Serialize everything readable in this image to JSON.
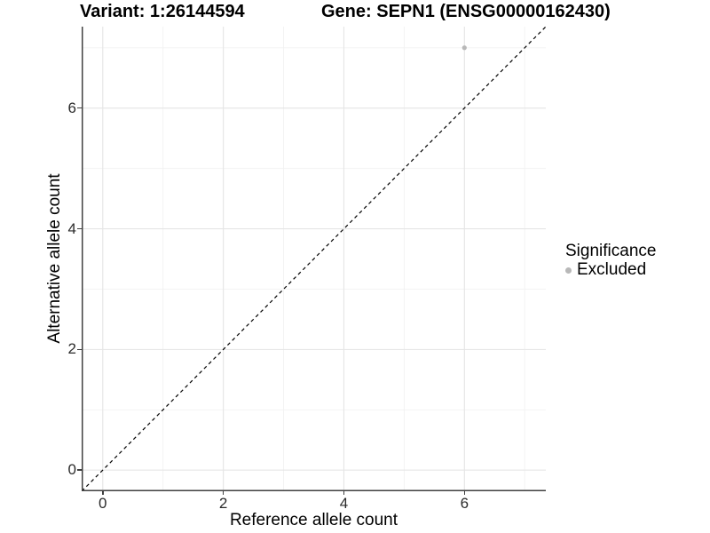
{
  "header": {
    "title_left": "Variant: 1:26144594",
    "title_right": "Gene: SEPN1 (ENSG00000162430)"
  },
  "chart_data": {
    "type": "scatter",
    "xlabel": "Reference allele count",
    "ylabel": "Alternative allele count",
    "xlim": [
      -0.35,
      7.35
    ],
    "ylim": [
      -0.35,
      7.35
    ],
    "x_ticks": [
      0,
      2,
      4,
      6
    ],
    "y_ticks": [
      0,
      2,
      4,
      6
    ],
    "x_minor_ticks": [
      1,
      3,
      5,
      7
    ],
    "y_minor_ticks": [
      1,
      3,
      5,
      7
    ],
    "grid": "major and minor gridlines on white background",
    "points": [
      {
        "x": 6,
        "y": 7,
        "series": "Excluded"
      }
    ],
    "identity_line": {
      "equation": "y = x",
      "style": "dashed",
      "color": "#000000"
    },
    "legend": {
      "title": "Significance",
      "position": "right",
      "items": [
        {
          "label": "Excluded",
          "marker": "circle",
          "color": "#b8b8b8"
        }
      ]
    },
    "colors": {
      "point": "#b8b8b8",
      "grid_major": "#e5e5e5",
      "grid_minor": "#f2f2f2",
      "axis_line": "#404040",
      "tick_label": "#2b2b2b",
      "title_text": "#000000"
    }
  }
}
